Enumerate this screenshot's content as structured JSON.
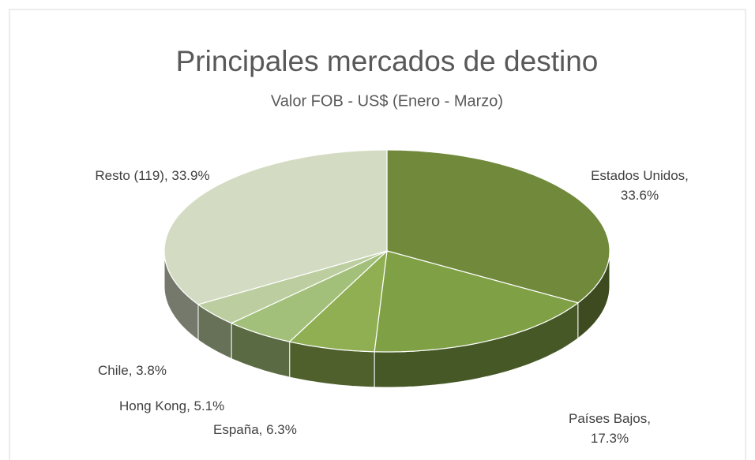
{
  "chart_data": {
    "type": "pie3d",
    "title": "Principales mercados de destino",
    "subtitle": "Valor FOB - US$ (Enero - Marzo)",
    "values": [
      33.6,
      17.3,
      6.3,
      5.1,
      3.8,
      33.9
    ],
    "value_labels": [
      "Estados Unidos, 33.6%",
      "Países Bajos, 17.3%",
      "España, 6.3%",
      "Hong Kong, 5.1%",
      "Chile, 3.8%",
      "Resto (119), 33.9%"
    ],
    "colors": [
      "#70893b",
      "#7fa045",
      "#8faf52",
      "#a3c07a",
      "#bccd9f",
      "#d3dcc2"
    ]
  }
}
